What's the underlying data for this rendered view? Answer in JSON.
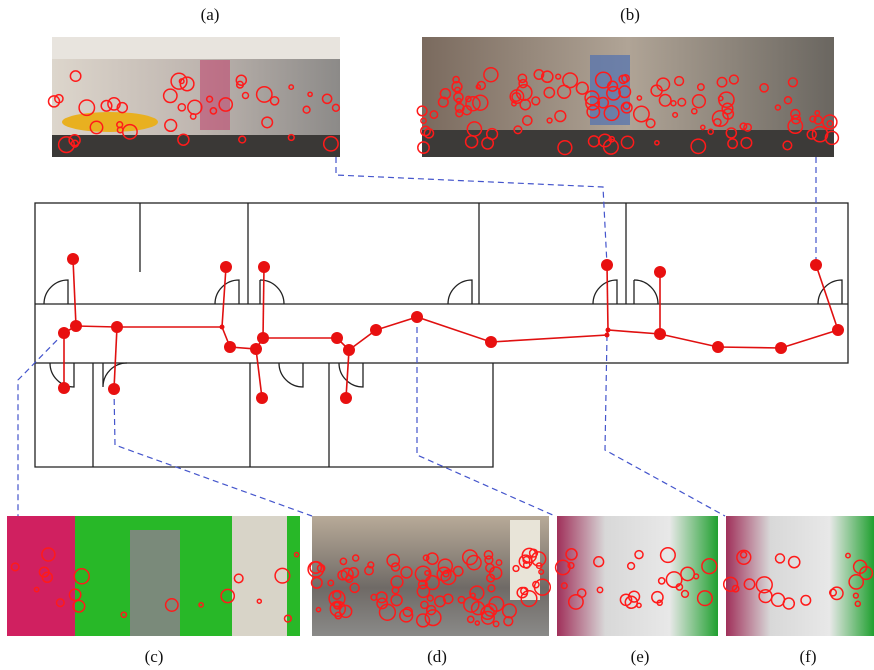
{
  "labels": {
    "a": "(a)",
    "b": "(b)",
    "c": "(c)",
    "d": "(d)",
    "e": "(e)",
    "f": "(f)"
  }
}
